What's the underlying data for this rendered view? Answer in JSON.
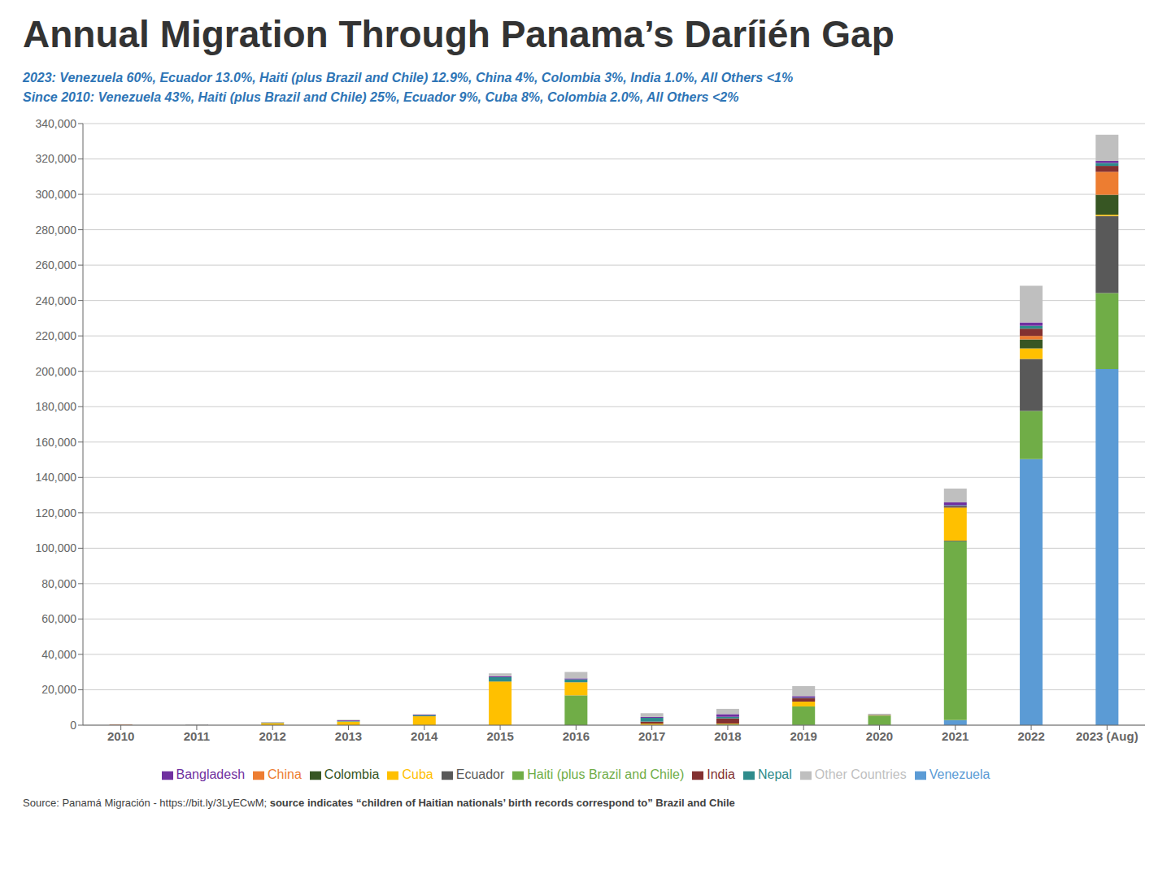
{
  "chart_data": {
    "type": "bar",
    "title": "Annual Migration Through Panama’s Daríién Gap",
    "subtitle": [
      "2023: Venezuela 60%, Ecuador 13.0%, Haiti (plus Brazil and Chile) 12.9%, China 4%, Colombia 3%, India 1.0%, All Others <1%",
      "Since 2010: Venezuela 43%, Haiti (plus Brazil and Chile) 25%, Ecuador 9%, Cuba 8%, Colombia 2.0%, All Others <2%"
    ],
    "annotations": [
      "Source: Panamá Migración - https://bit.ly/3LyECwM; ",
      "source indicates “children of Haitian nationals’ birth records correspond to” Brazil and Chile"
    ],
    "categories": [
      "2010",
      "2011",
      "2012",
      "2013",
      "2014",
      "2015",
      "2016",
      "2017",
      "2018",
      "2019",
      "2020",
      "2021",
      "2022",
      "2023 (Aug)"
    ],
    "series": [
      {
        "name": "Venezuela",
        "color": "#5B9BD5",
        "values": [
          0,
          0,
          0,
          0,
          0,
          2,
          6,
          18,
          65,
          78,
          69,
          2819,
          150327,
          201288
        ]
      },
      {
        "name": "Haiti (plus Brazil and Chile)",
        "color": "#70AD47",
        "values": [
          0,
          1,
          0,
          2,
          2,
          8,
          16742,
          40,
          420,
          10490,
          5331,
          101072,
          27287,
          42959
        ]
      },
      {
        "name": "Ecuador",
        "color": "#595959",
        "values": [
          0,
          15,
          18,
          4,
          1,
          14,
          93,
          50,
          51,
          31,
          40,
          387,
          29356,
          43536
        ]
      },
      {
        "name": "Cuba",
        "color": "#FFC000",
        "values": [
          79,
          18,
          1154,
          2010,
          5026,
          24623,
          7383,
          736,
          329,
          2691,
          245,
          18600,
          5961,
          700
        ]
      },
      {
        "name": "Colombia",
        "color": "#375623",
        "values": [
          0,
          65,
          24,
          26,
          9,
          32,
          16,
          36,
          13,
          23,
          21,
          169,
          5064,
          11276
        ]
      },
      {
        "name": "China",
        "color": "#ED7D31",
        "values": [
          268,
          9,
          11,
          1,
          0,
          1,
          0,
          6,
          0,
          0,
          3,
          77,
          2005,
          12979
        ]
      },
      {
        "name": "India",
        "color": "#833131",
        "values": [
          12,
          11,
          48,
          0,
          1,
          1,
          20,
          1127,
          2962,
          1920,
          39,
          592,
          4094,
          3338
        ]
      },
      {
        "name": "Nepal",
        "color": "#2E8B8B",
        "values": [
          29,
          9,
          213,
          297,
          468,
          2426,
          1619,
          2138,
          868,
          254,
          56,
          523,
          1631,
          1659
        ]
      },
      {
        "name": "Bangladesh",
        "color": "#7030A0",
        "values": [
          53,
          45,
          89,
          398,
          377,
          559,
          580,
          506,
          1525,
          911,
          123,
          1657,
          1884,
          1158
        ]
      },
      {
        "name": "Other Countries",
        "color": "#BFBFBF",
        "values": [
          118,
          110,
          220,
          313,
          291,
          1623,
          3601,
          2119,
          2988,
          5704,
          538,
          7830,
          20675,
          14811
        ]
      }
    ],
    "stacked": true,
    "ylim": [
      0,
      340000
    ],
    "yticks": [
      0,
      {
        "value": 20000,
        "label": "20,000"
      },
      {
        "value": 40000,
        "label": "40,000"
      },
      {
        "value": 60000,
        "label": "60,000"
      },
      {
        "value": 80000,
        "label": "80,000"
      },
      {
        "value": 100000,
        "label": "100,000"
      },
      {
        "value": 120000,
        "label": "120,000"
      },
      {
        "value": 140000,
        "label": "140,000"
      },
      {
        "value": 160000,
        "label": "160,000"
      },
      {
        "value": 180000,
        "label": "180,000"
      },
      {
        "value": 200000,
        "label": "200,000"
      },
      {
        "value": 220000,
        "label": "220,000"
      },
      {
        "value": 240000,
        "label": "240,000"
      },
      {
        "value": 260000,
        "label": "260,000"
      },
      {
        "value": 280000,
        "label": "280,000"
      },
      {
        "value": 300000,
        "label": "300,000"
      },
      {
        "value": 320000,
        "label": "320,000"
      },
      {
        "value": 340000,
        "label": "340,000"
      }
    ],
    "grid": true,
    "legend": "bottom"
  }
}
